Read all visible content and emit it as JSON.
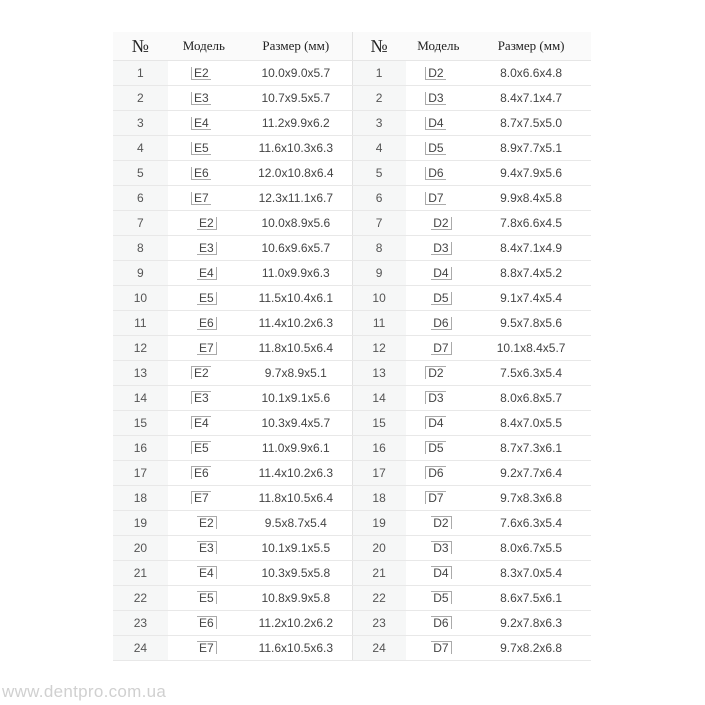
{
  "headers": {
    "num": "№",
    "model": "Модель",
    "size": "Размер (мм)"
  },
  "rows": [
    {
      "n": "1",
      "e": "E2",
      "es": "10.0x9.0x5.7",
      "d": "D2",
      "ds": "8.0x6.6x4.8",
      "q": "lower-left"
    },
    {
      "n": "2",
      "e": "E3",
      "es": "10.7x9.5x5.7",
      "d": "D3",
      "ds": "8.4x7.1x4.7",
      "q": "lower-left"
    },
    {
      "n": "3",
      "e": "E4",
      "es": "11.2x9.9x6.2",
      "d": "D4",
      "ds": "8.7x7.5x5.0",
      "q": "lower-left"
    },
    {
      "n": "4",
      "e": "E5",
      "es": "11.6x10.3x6.3",
      "d": "D5",
      "ds": "8.9x7.7x5.1",
      "q": "lower-left"
    },
    {
      "n": "5",
      "e": "E6",
      "es": "12.0x10.8x6.4",
      "d": "D6",
      "ds": "9.4x7.9x5.6",
      "q": "lower-left"
    },
    {
      "n": "6",
      "e": "E7",
      "es": "12.3x11.1x6.7",
      "d": "D7",
      "ds": "9.9x8.4x5.8",
      "q": "lower-left"
    },
    {
      "n": "7",
      "e": "E2",
      "es": "10.0x8.9x5.6",
      "d": "D2",
      "ds": "7.8x6.6x4.5",
      "q": "lower-right"
    },
    {
      "n": "8",
      "e": "E3",
      "es": "10.6x9.6x5.7",
      "d": "D3",
      "ds": "8.4x7.1x4.9",
      "q": "lower-right"
    },
    {
      "n": "9",
      "e": "E4",
      "es": "11.0x9.9x6.3",
      "d": "D4",
      "ds": "8.8x7.4x5.2",
      "q": "lower-right"
    },
    {
      "n": "10",
      "e": "E5",
      "es": "11.5x10.4x6.1",
      "d": "D5",
      "ds": "9.1x7.4x5.4",
      "q": "lower-right"
    },
    {
      "n": "11",
      "e": "E6",
      "es": "11.4x10.2x6.3",
      "d": "D6",
      "ds": "9.5x7.8x5.6",
      "q": "lower-right"
    },
    {
      "n": "12",
      "e": "E7",
      "es": "11.8x10.5x6.4",
      "d": "D7",
      "ds": "10.1x8.4x5.7",
      "q": "lower-right"
    },
    {
      "n": "13",
      "e": "E2",
      "es": "9.7x8.9x5.1",
      "d": "D2",
      "ds": "7.5x6.3x5.4",
      "q": "upper-left"
    },
    {
      "n": "14",
      "e": "E3",
      "es": "10.1x9.1x5.6",
      "d": "D3",
      "ds": "8.0x6.8x5.7",
      "q": "upper-left"
    },
    {
      "n": "15",
      "e": "E4",
      "es": "10.3x9.4x5.7",
      "d": "D4",
      "ds": "8.4x7.0x5.5",
      "q": "upper-left"
    },
    {
      "n": "16",
      "e": "E5",
      "es": "11.0x9.9x6.1",
      "d": "D5",
      "ds": "8.7x7.3x6.1",
      "q": "upper-left"
    },
    {
      "n": "17",
      "e": "E6",
      "es": "11.4x10.2x6.3",
      "d": "D6",
      "ds": "9.2x7.7x6.4",
      "q": "upper-left"
    },
    {
      "n": "18",
      "e": "E7",
      "es": "11.8x10.5x6.4",
      "d": "D7",
      "ds": "9.7x8.3x6.8",
      "q": "upper-left"
    },
    {
      "n": "19",
      "e": "E2",
      "es": "9.5x8.7x5.4",
      "d": "D2",
      "ds": "7.6x6.3x5.4",
      "q": "upper-right"
    },
    {
      "n": "20",
      "e": "E3",
      "es": "10.1x9.1x5.5",
      "d": "D3",
      "ds": "8.0x6.7x5.5",
      "q": "upper-right"
    },
    {
      "n": "21",
      "e": "E4",
      "es": "10.3x9.5x5.8",
      "d": "D4",
      "ds": "8.3x7.0x5.4",
      "q": "upper-right"
    },
    {
      "n": "22",
      "e": "E5",
      "es": "10.8x9.9x5.8",
      "d": "D5",
      "ds": "8.6x7.5x6.1",
      "q": "upper-right"
    },
    {
      "n": "23",
      "e": "E6",
      "es": "11.2x10.2x6.2",
      "d": "D6",
      "ds": "9.2x7.8x6.3",
      "q": "upper-right"
    },
    {
      "n": "24",
      "e": "E7",
      "es": "11.6x10.5x6.3",
      "d": "D7",
      "ds": "9.7x8.2x6.8",
      "q": "upper-right"
    }
  ],
  "watermark": "www.dentpro.com.ua"
}
